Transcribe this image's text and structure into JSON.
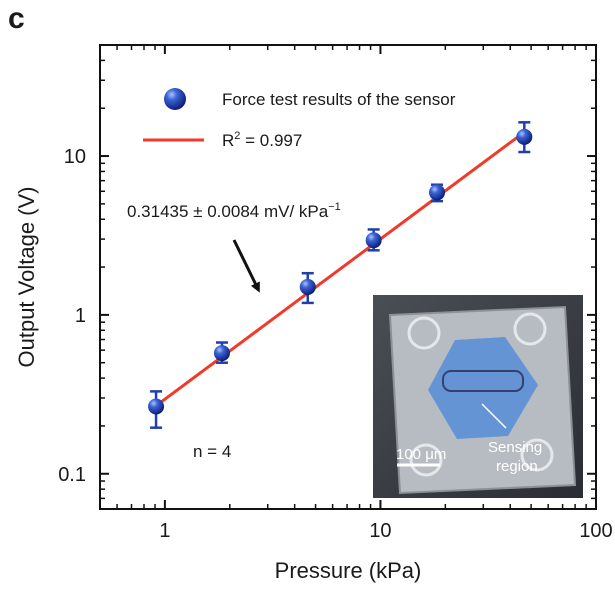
{
  "panel_label": "c",
  "chart_data": {
    "type": "scatter",
    "xlabel": "Pressure (kPa)",
    "ylabel": "Output Voltage  (V)",
    "xscale": "log",
    "yscale": "log",
    "xlim": [
      0.5,
      100
    ],
    "ylim": [
      0.06,
      50
    ],
    "x_ticks": [
      1,
      10,
      100
    ],
    "x_tick_labels": [
      "1",
      "10",
      "100"
    ],
    "y_ticks": [
      0.1,
      1,
      10
    ],
    "y_tick_labels": [
      "0.1",
      "1",
      "10"
    ],
    "grid": false,
    "legend_position": "top-left",
    "series": [
      {
        "name": "Force test results of the sensor",
        "kind": "points",
        "color": "#1f3fae",
        "x": [
          0.91,
          1.84,
          4.6,
          9.3,
          18.3,
          46.5
        ],
        "y": [
          0.265,
          0.575,
          1.5,
          2.95,
          5.9,
          13.2
        ],
        "y_err_low": [
          0.195,
          0.5,
          1.19,
          2.55,
          5.2,
          10.6
        ],
        "y_err_high": [
          0.33,
          0.67,
          1.83,
          3.45,
          6.6,
          16.3
        ]
      },
      {
        "name": "R² = 0.997",
        "legend_main": "R",
        "legend_sup": "2",
        "legend_tail": " = 0.997",
        "kind": "fit_line",
        "color": "#f03a2a",
        "x": [
          0.9,
          48
        ],
        "y": [
          0.265,
          14.6
        ]
      }
    ],
    "annotations": [
      {
        "label": "sensitivity",
        "text": "0.31435 ± 0.0084 mV/ kPa",
        "sup": "−1"
      },
      {
        "label": "sample-size",
        "text": "n = 4"
      }
    ],
    "inset": {
      "scale_bar_label": "100 μm",
      "region_label_line1": "Sensing",
      "region_label_line2": "region"
    }
  }
}
